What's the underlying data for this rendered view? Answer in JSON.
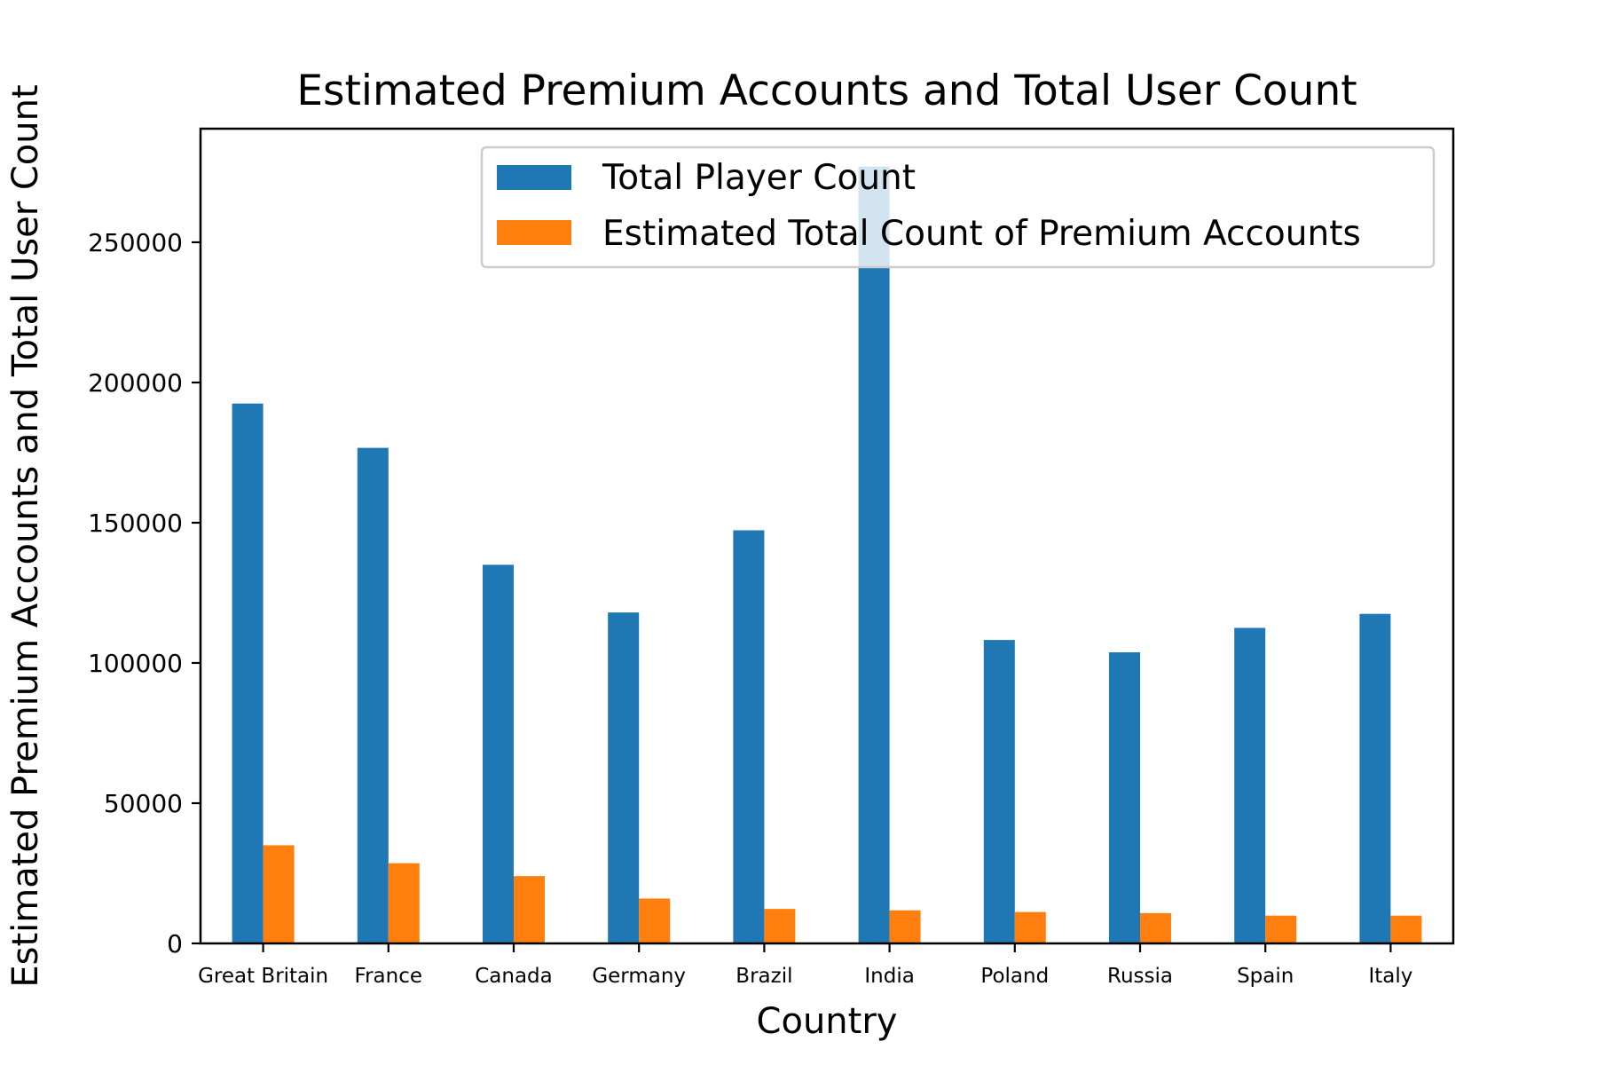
{
  "chart_data": {
    "type": "bar",
    "title": "Estimated Premium Accounts and Total User Count",
    "xlabel": "Country",
    "ylabel": "Estimated Premium Accounts and Total User Count",
    "categories": [
      "Great Britain",
      "France",
      "Canada",
      "Germany",
      "Brazil",
      "India",
      "Poland",
      "Russia",
      "Spain",
      "Italy"
    ],
    "series": [
      {
        "name": "Total Player Count",
        "color": "#1f77b4",
        "values": [
          192500,
          176700,
          135000,
          118000,
          147300,
          277000,
          108200,
          103800,
          112500,
          117500
        ]
      },
      {
        "name": "Estimated Total Count of Premium Accounts",
        "color": "#ff7f0e",
        "values": [
          35000,
          28600,
          24000,
          16000,
          12300,
          11800,
          11200,
          10800,
          9900,
          9900
        ]
      }
    ],
    "ylim": [
      0,
      290500
    ],
    "yticks": [
      0,
      50000,
      100000,
      150000,
      200000,
      250000
    ],
    "ytick_labels": [
      "0",
      "50000",
      "100000",
      "150000",
      "200000",
      "250000"
    ],
    "grid": false,
    "legend_position": "top-right"
  }
}
